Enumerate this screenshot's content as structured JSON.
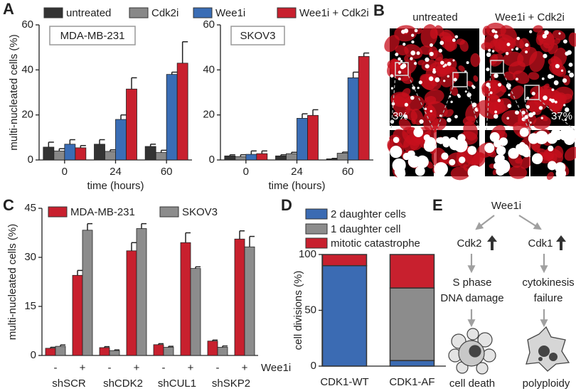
{
  "panel_labels": [
    "A",
    "B",
    "C",
    "D",
    "E"
  ],
  "chart_data": [
    {
      "type": "bar",
      "ylabel": "multi-nucleated cells (%)",
      "xlabel": "time (hours)",
      "annotation": "MDA-MB-231",
      "categories": [
        "0",
        "24",
        "60"
      ],
      "ylim": [
        0,
        60
      ],
      "yticks": [
        0,
        20,
        40,
        60
      ],
      "legend": true,
      "series": [
        {
          "name": "untreated",
          "color": "#333333",
          "values": [
            5.7,
            7,
            6
          ],
          "errors": [
            2.2,
            2,
            1
          ]
        },
        {
          "name": "Cdk2i",
          "color": "#888888",
          "values": [
            4,
            3.8,
            3.3
          ],
          "errors": [
            1,
            0.7,
            1
          ]
        },
        {
          "name": "Wee1i",
          "color": "#3a6db5",
          "values": [
            7,
            18,
            38
          ],
          "errors": [
            2,
            2,
            1
          ]
        },
        {
          "name": "Wee1i + Cdk2i",
          "color": "#c8202e",
          "values": [
            5.4,
            31.5,
            43
          ],
          "errors": [
            1,
            5,
            9.5
          ]
        }
      ]
    },
    {
      "type": "bar",
      "xlabel": "time (hours)",
      "annotation": "SKOV3",
      "categories": [
        "0",
        "24",
        "60"
      ],
      "ylim": [
        0,
        60
      ],
      "yticks": [
        0,
        20,
        40,
        60
      ],
      "legend": false,
      "series": [
        {
          "color": "#333333",
          "values": [
            1.8,
            1.8,
            0.5
          ],
          "errors": [
            0.5,
            0.5,
            0.2
          ]
        },
        {
          "color": "#888888",
          "values": [
            1.5,
            2.8,
            3
          ],
          "errors": [
            0.8,
            0.6,
            0.5
          ]
        },
        {
          "color": "#3a6db5",
          "values": [
            2.5,
            18.5,
            36.5
          ],
          "errors": [
            1.5,
            2,
            2.5
          ]
        },
        {
          "color": "#c8202e",
          "values": [
            2.8,
            19.8,
            46
          ],
          "errors": [
            1.2,
            2.5,
            1.5
          ]
        }
      ]
    },
    {
      "type": "bar",
      "ylabel": "multi-nucleated cells (%)",
      "categories": [
        "-",
        "+",
        "-",
        "+",
        "-",
        "+",
        "-",
        "+"
      ],
      "groups": [
        "shSCR",
        "shCDK2",
        "shCUL1",
        "shSKP2"
      ],
      "group_label": "Wee1i",
      "ylim": [
        0,
        45
      ],
      "yticks": [
        0,
        15,
        30,
        45
      ],
      "legend": true,
      "series": [
        {
          "name": "MDA-MB-231",
          "color": "#c8202e",
          "values": [
            2.2,
            24.5,
            2.4,
            32,
            3.3,
            34.5,
            4.4,
            35.6
          ],
          "errors": [
            0.3,
            1.5,
            0.3,
            2.5,
            0.3,
            3,
            0.3,
            2.5
          ]
        },
        {
          "name": "SKOV3",
          "color": "#8c8c8c",
          "values": [
            2.8,
            38.3,
            1.5,
            38.8,
            2.5,
            26.6,
            2.5,
            33.2
          ],
          "errors": [
            0.4,
            2,
            0.2,
            1.5,
            0.3,
            0.5,
            0.4,
            3.2
          ]
        }
      ]
    },
    {
      "type": "stacked_bar",
      "ylabel": "cell divisions (%)",
      "categories": [
        "CDK1-WT",
        "CDK1-AF"
      ],
      "ylim": [
        0,
        100
      ],
      "yticks": [
        0,
        50,
        100
      ],
      "legend": true,
      "series": [
        {
          "name": "2 daughter cells",
          "color": "#3b6bb3",
          "values": [
            90,
            5
          ]
        },
        {
          "name": "1 daughter cell",
          "color": "#8c8c8c",
          "values": [
            0,
            65
          ]
        },
        {
          "name": "mitotic catastrophe",
          "color": "#c8202e",
          "values": [
            10,
            30
          ]
        }
      ]
    }
  ],
  "images": {
    "columns": [
      "untreated",
      "Wee1i + Cdk2i"
    ],
    "percents": [
      "3%",
      "37%"
    ]
  },
  "diagram": {
    "nodes": [
      "Wee1i",
      "Cdk2",
      "Cdk1",
      "S phase",
      "DNA damage",
      "cytokinesis",
      "failure",
      "cell death",
      "polyploidy"
    ]
  }
}
